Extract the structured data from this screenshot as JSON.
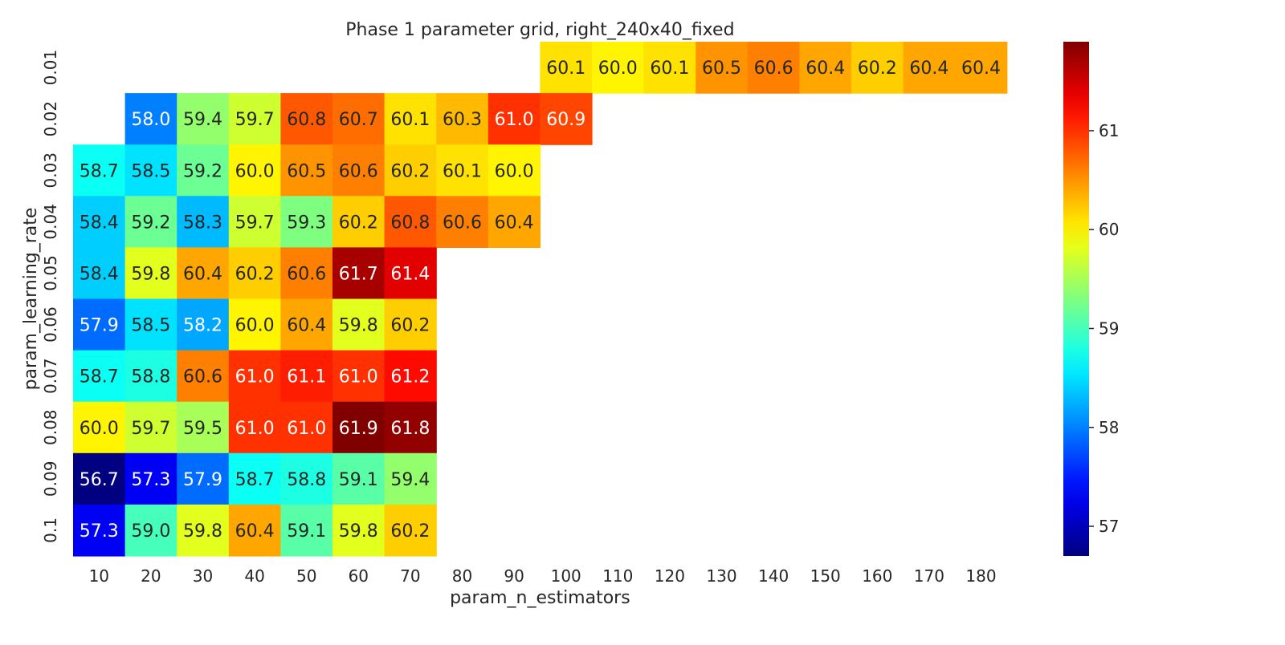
{
  "chart_data": {
    "type": "heatmap",
    "title": "Phase 1 parameter grid, right_240x40_fixed",
    "xlabel": "param_n_estimators",
    "ylabel": "param_learning_rate",
    "x_categories": [
      "10",
      "20",
      "30",
      "40",
      "50",
      "60",
      "70",
      "80",
      "90",
      "100",
      "110",
      "120",
      "130",
      "140",
      "150",
      "160",
      "170",
      "180"
    ],
    "y_categories": [
      "0.01",
      "0.02",
      "0.03",
      "0.04",
      "0.05",
      "0.06",
      "0.07",
      "0.08",
      "0.09",
      "0.1"
    ],
    "values": [
      [
        null,
        null,
        null,
        null,
        null,
        null,
        null,
        null,
        null,
        60.1,
        60.0,
        60.1,
        60.5,
        60.6,
        60.4,
        60.2,
        60.4,
        60.4
      ],
      [
        null,
        58.0,
        59.4,
        59.7,
        60.8,
        60.7,
        60.1,
        60.3,
        61.0,
        60.9,
        null,
        null,
        null,
        null,
        null,
        null,
        null,
        null
      ],
      [
        58.7,
        58.5,
        59.2,
        60.0,
        60.5,
        60.6,
        60.2,
        60.1,
        60.0,
        null,
        null,
        null,
        null,
        null,
        null,
        null,
        null,
        null
      ],
      [
        58.4,
        59.2,
        58.3,
        59.7,
        59.3,
        60.2,
        60.8,
        60.6,
        60.4,
        null,
        null,
        null,
        null,
        null,
        null,
        null,
        null,
        null
      ],
      [
        58.4,
        59.8,
        60.4,
        60.2,
        60.6,
        61.7,
        61.4,
        null,
        null,
        null,
        null,
        null,
        null,
        null,
        null,
        null,
        null,
        null
      ],
      [
        57.9,
        58.5,
        58.2,
        60.0,
        60.4,
        59.8,
        60.2,
        null,
        null,
        null,
        null,
        null,
        null,
        null,
        null,
        null,
        null,
        null
      ],
      [
        58.7,
        58.8,
        60.6,
        61.0,
        61.1,
        61.0,
        61.2,
        null,
        null,
        null,
        null,
        null,
        null,
        null,
        null,
        null,
        null,
        null
      ],
      [
        60.0,
        59.7,
        59.5,
        61.0,
        61.0,
        61.9,
        61.8,
        null,
        null,
        null,
        null,
        null,
        null,
        null,
        null,
        null,
        null,
        null
      ],
      [
        56.7,
        57.3,
        57.9,
        58.7,
        58.8,
        59.1,
        59.4,
        null,
        null,
        null,
        null,
        null,
        null,
        null,
        null,
        null,
        null,
        null
      ],
      [
        57.3,
        59.0,
        59.8,
        60.4,
        59.1,
        59.8,
        60.2,
        null,
        null,
        null,
        null,
        null,
        null,
        null,
        null,
        null,
        null,
        null
      ]
    ],
    "value_format": "one decimal",
    "colormap": "jet",
    "colorbar": {
      "range": [
        56.7,
        61.9
      ],
      "ticks": [
        "57",
        "58",
        "59",
        "60",
        "61"
      ]
    },
    "grid": false
  }
}
